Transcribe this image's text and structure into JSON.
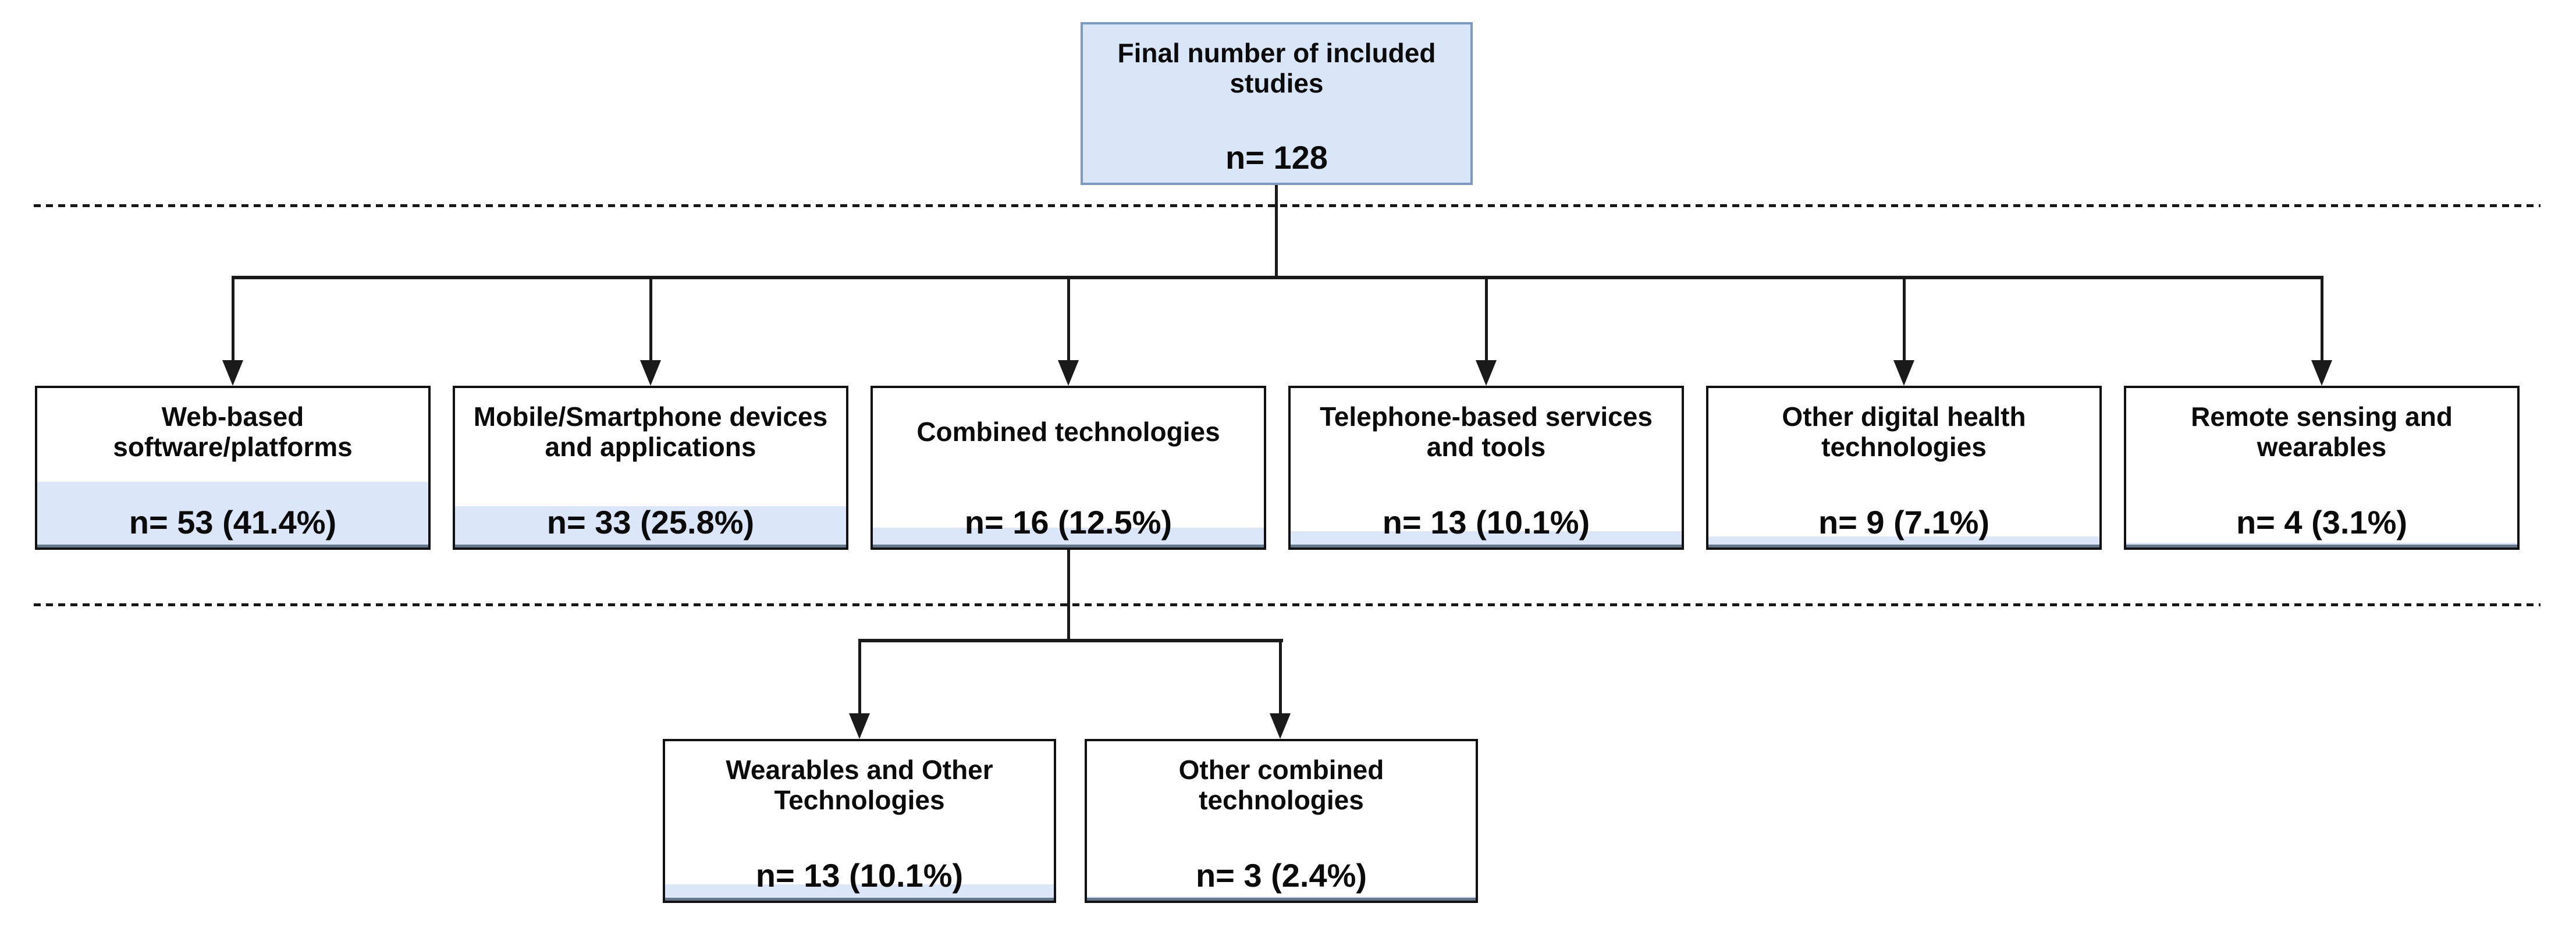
{
  "root": {
    "title": "Final number of included\nstudies",
    "count_label": "n= 128",
    "n": 128
  },
  "branches": [
    {
      "title": "Web-based\nsoftware/platforms",
      "count_label": "n= 53 (41.4%)",
      "n": 53,
      "pct": 41.4
    },
    {
      "title": "Mobile/Smartphone devices\nand applications",
      "count_label": "n= 33 (25.8%)",
      "n": 33,
      "pct": 25.8
    },
    {
      "title": "Combined technologies",
      "count_label": "n= 16 (12.5%)",
      "n": 16,
      "pct": 12.5
    },
    {
      "title": "Telephone-based services\nand tools",
      "count_label": "n= 13 (10.1%)",
      "n": 13,
      "pct": 10.1
    },
    {
      "title": "Other digital health\ntechnologies",
      "count_label": "n= 9 (7.1%)",
      "n": 9,
      "pct": 7.1
    },
    {
      "title": "Remote sensing and\nwearables",
      "count_label": "n= 4 (3.1%)",
      "n": 4,
      "pct": 3.1
    }
  ],
  "sub_branches": [
    {
      "title": "Wearables and Other\nTechnologies",
      "count_label": "n= 13 (10.1%)",
      "n": 13,
      "pct": 10.1
    },
    {
      "title": "Other combined\ntechnologies",
      "count_label": "n= 3 (2.4%)",
      "n": 3,
      "pct": 2.4
    }
  ],
  "colors": {
    "root_fill": "#d9e6f7",
    "root_border": "#7c99c4",
    "strip_fill": "#dbe7f8",
    "strip_edge": "#66788c",
    "box_border": "#111111",
    "line": "#1a1a1a"
  }
}
